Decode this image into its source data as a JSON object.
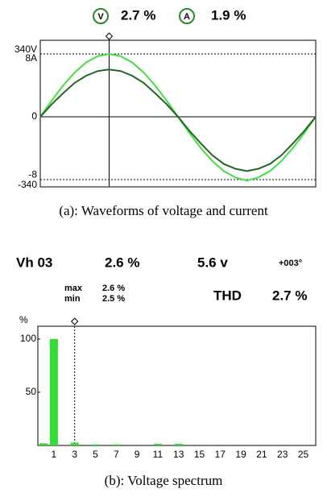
{
  "chart_data": [
    {
      "type": "line",
      "readings": [
        {
          "icon": "V",
          "value": "2.7 %"
        },
        {
          "icon": "A",
          "value": "1.9 %"
        }
      ],
      "caption": "(a): Waveforms of voltage and current",
      "x": [
        0,
        15,
        30,
        45,
        60,
        75,
        90,
        105,
        120,
        135,
        150,
        165,
        180,
        195,
        210,
        225,
        240,
        255,
        270,
        285,
        300,
        315,
        330,
        345,
        360
      ],
      "xlim": [
        0,
        360
      ],
      "cursor_x": 90,
      "ylim": [
        -379,
        414
      ],
      "yticks": [
        {
          "value": 340,
          "label": "340V"
        },
        0,
        {
          "value": -340,
          "label": "-340"
        }
      ],
      "y2lim": [
        -8.9,
        9.7
      ],
      "y2ticks": [
        {
          "value": 8,
          "label": "8A"
        },
        {
          "value": -8,
          "label": "-8"
        }
      ],
      "grid": true,
      "series": [
        {
          "color": "#44dd44",
          "values": [
            0,
            88,
            170,
            240,
            294,
            328,
            340,
            328,
            294,
            240,
            170,
            88,
            0,
            -88,
            -170,
            -240,
            -294,
            -328,
            -345,
            -328,
            -294,
            -240,
            -170,
            -88,
            0
          ]
        },
        {
          "color": "#226622",
          "axis": "y2",
          "values": [
            0,
            1.6,
            3.0,
            4.3,
            5.2,
            5.8,
            6.0,
            5.8,
            5.2,
            4.3,
            3.0,
            1.6,
            0,
            -1.8,
            -3.4,
            -4.9,
            -6.0,
            -6.6,
            -6.9,
            -6.6,
            -6.0,
            -4.9,
            -3.4,
            -1.8,
            0
          ]
        }
      ]
    },
    {
      "type": "bar",
      "harmonic": "Vh 03",
      "percent": "2.6 %",
      "voltage": "5.6 v",
      "phase": "+003°",
      "max_label": "max",
      "max": "2.6 %",
      "min_label": "min",
      "min": "2.5 %",
      "thd_label": "THD",
      "thd": "2.7 %",
      "caption": "(b): Voltage spectrum",
      "ylabel": "%",
      "categories": [
        null,
        "1",
        null,
        "3",
        null,
        "5",
        null,
        "7",
        null,
        "9",
        null,
        "11",
        null,
        "13",
        null,
        "15",
        null,
        "17",
        null,
        "19",
        null,
        "21",
        null,
        "23",
        null,
        "25"
      ],
      "values": [
        2,
        100,
        0,
        2.6,
        0,
        1,
        0,
        1,
        0,
        0,
        0,
        1.5,
        0,
        1.5,
        0,
        0,
        0,
        0,
        0,
        0,
        0,
        0,
        0,
        0,
        0,
        0
      ],
      "color": "#33dd33",
      "cursor": 3,
      "ylim": [
        0,
        112
      ],
      "yticks": [
        50,
        100
      ]
    }
  ]
}
